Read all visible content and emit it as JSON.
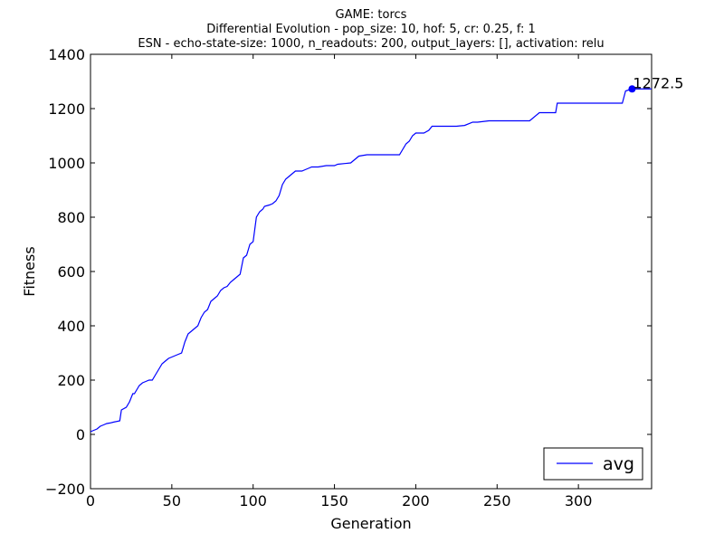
{
  "chart_data": {
    "type": "line",
    "title_lines": [
      "GAME: torcs",
      "Differential Evolution - pop_size: 10, hof: 5, cr: 0.25, f: 1",
      "ESN - echo-state-size: 1000, n_readouts: 200, output_layers: [], activation: relu"
    ],
    "xlabel": "Generation",
    "ylabel": "Fitness",
    "xlim": [
      0,
      345
    ],
    "ylim": [
      -200,
      1400
    ],
    "xticks": [
      0,
      50,
      100,
      150,
      200,
      250,
      300
    ],
    "yticks": [
      -200,
      0,
      200,
      400,
      600,
      800,
      1000,
      1200,
      1400
    ],
    "grid": false,
    "legend": {
      "position": "bottom-right",
      "entries": [
        "avg"
      ]
    },
    "line_color": "#0000ff",
    "series": [
      {
        "name": "avg",
        "x": [
          0,
          2,
          4,
          6,
          8,
          10,
          12,
          14,
          18,
          19,
          22,
          24,
          26,
          27,
          29,
          30,
          32,
          34,
          36,
          38,
          40,
          42,
          44,
          46,
          48,
          50,
          52,
          54,
          56,
          58,
          60,
          62,
          64,
          66,
          68,
          70,
          72,
          74,
          76,
          78,
          80,
          82,
          84,
          86,
          88,
          90,
          92,
          94,
          96,
          98,
          100,
          102,
          104,
          106,
          107,
          110,
          112,
          114,
          116,
          118,
          120,
          122,
          124,
          126,
          128,
          130,
          132,
          134,
          136,
          140,
          145,
          150,
          152,
          160,
          165,
          170,
          180,
          190,
          194,
          196,
          198,
          200,
          205,
          208,
          210,
          215,
          220,
          225,
          230,
          235,
          238,
          245,
          250,
          260,
          270,
          276,
          280,
          286,
          287,
          300,
          310,
          320,
          327,
          329,
          333,
          338,
          345
        ],
        "y": [
          10,
          15,
          20,
          30,
          35,
          40,
          42,
          45,
          50,
          90,
          100,
          120,
          150,
          150,
          170,
          180,
          190,
          195,
          200,
          200,
          220,
          240,
          260,
          270,
          280,
          285,
          290,
          295,
          300,
          340,
          370,
          380,
          390,
          400,
          430,
          450,
          460,
          490,
          500,
          510,
          530,
          540,
          545,
          560,
          570,
          580,
          590,
          650,
          660,
          700,
          710,
          800,
          820,
          830,
          840,
          845,
          850,
          860,
          880,
          920,
          940,
          950,
          960,
          970,
          970,
          970,
          975,
          980,
          985,
          985,
          990,
          990,
          995,
          1000,
          1025,
          1030,
          1030,
          1030,
          1070,
          1080,
          1100,
          1110,
          1110,
          1120,
          1135,
          1135,
          1135,
          1135,
          1138,
          1150,
          1150,
          1155,
          1155,
          1155,
          1155,
          1185,
          1185,
          1185,
          1220,
          1220,
          1220,
          1220,
          1220,
          1265,
          1272.5,
          1272.5,
          1272.5
        ]
      }
    ],
    "marker": {
      "x": 333,
      "y": 1272.5,
      "label": "1272.5"
    }
  }
}
